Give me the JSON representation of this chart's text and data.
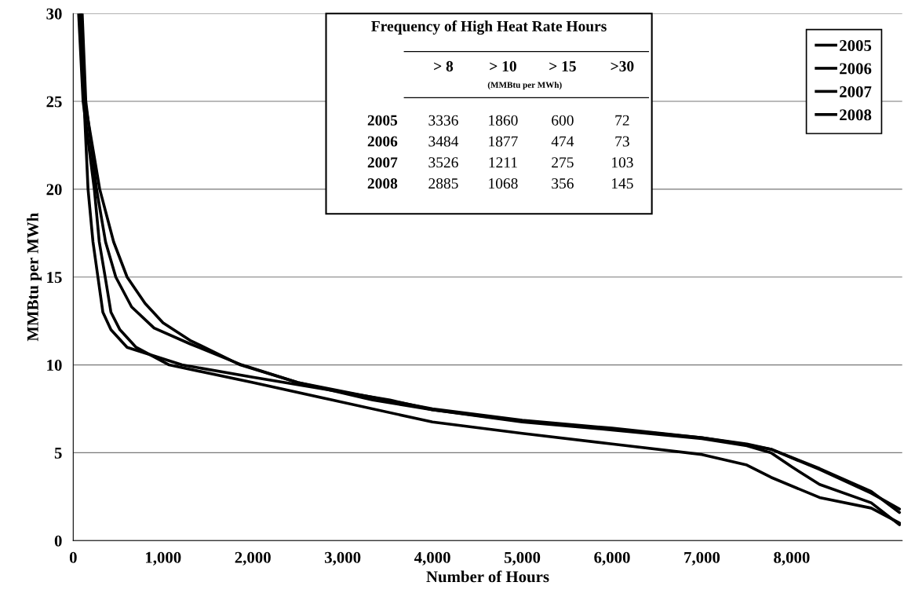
{
  "chart_data": [
    {
      "type": "line",
      "xlabel": "Number of Hours",
      "ylabel": "MMBtu per MWh",
      "xlim": [
        0,
        9230
      ],
      "ylim": [
        0,
        30
      ],
      "xticks": [
        0,
        {
          "value": 1000,
          "label": "1,000"
        },
        {
          "value": 2000,
          "label": "2,000"
        },
        {
          "value": 3000,
          "label": "3,000"
        },
        {
          "value": 4000,
          "label": "4,000"
        },
        {
          "value": 5000,
          "label": "5,000"
        },
        {
          "value": 6000,
          "label": "6,000"
        },
        {
          "value": 7000,
          "label": "7,000"
        },
        {
          "value": 8000,
          "label": "8,000"
        }
      ],
      "yticks": [
        0,
        5,
        10,
        15,
        20,
        25,
        30
      ],
      "grid": "y",
      "legend": "top right",
      "marker": "none",
      "line_style": "solid",
      "series": [
        {
          "name": "2005",
          "color": "#000000",
          "x": [
            80,
            130,
            295,
            450,
            600,
            800,
            1000,
            1300,
            1860,
            2500,
            3336,
            4000,
            5000,
            6000,
            7000,
            7500,
            7770,
            8310,
            8885,
            9200
          ],
          "values": [
            30,
            25,
            20,
            17,
            15,
            13.5,
            12.4,
            11.4,
            10,
            9.0,
            8,
            7.45,
            6.8,
            6.35,
            5.85,
            5.5,
            5.2,
            4.05,
            2.7,
            1.8
          ]
        },
        {
          "name": "2006",
          "color": "#000000",
          "x": [
            100,
            140,
            260,
            360,
            474,
            650,
            900,
            1300,
            1877,
            2500,
            3484,
            4000,
            5000,
            6000,
            7000,
            7500,
            7770,
            8310,
            8885,
            9200
          ],
          "values": [
            30,
            25,
            20,
            17,
            15,
            13.3,
            12.1,
            11.2,
            10,
            9.0,
            8,
            7.5,
            6.85,
            6.4,
            5.85,
            5.45,
            5.2,
            4.1,
            2.8,
            1.6
          ]
        },
        {
          "name": "2007",
          "color": "#000000",
          "x": [
            90,
            120,
            165,
            220,
            275,
            330,
            420,
            600,
            1211,
            2000,
            3526,
            4000,
            5000,
            6000,
            7000,
            7500,
            7770,
            8000,
            8310,
            8885,
            9200
          ],
          "values": [
            30,
            25,
            20,
            17,
            15,
            13,
            12,
            11,
            10,
            9.3,
            8,
            7.45,
            6.75,
            6.3,
            5.8,
            5.4,
            5.0,
            4.2,
            3.2,
            2.15,
            0.9
          ]
        },
        {
          "name": "2008",
          "color": "#000000",
          "x": [
            60,
            110,
            235,
            290,
            356,
            420,
            520,
            700,
            1068,
            2000,
            2885,
            4000,
            5000,
            6000,
            7000,
            7500,
            7770,
            8310,
            8885,
            9200
          ],
          "values": [
            30,
            25,
            20,
            17,
            15,
            13,
            12,
            11,
            10,
            9.0,
            8,
            6.75,
            6.1,
            5.5,
            4.9,
            4.3,
            3.6,
            2.45,
            1.85,
            1.0
          ]
        }
      ],
      "annotations": [
        "Frequency of High Heat Rate Hours",
        "> 8",
        "> 10",
        "> 15",
        ">30",
        "(MMBtu per MWh)",
        "2005",
        "3336",
        "1860",
        "600",
        "72",
        "2006",
        "3484",
        "1877",
        "474",
        "73",
        "2007",
        "3526",
        "1211",
        "275",
        "103",
        "2008",
        "2885",
        "1068",
        "356",
        "145"
      ]
    }
  ]
}
